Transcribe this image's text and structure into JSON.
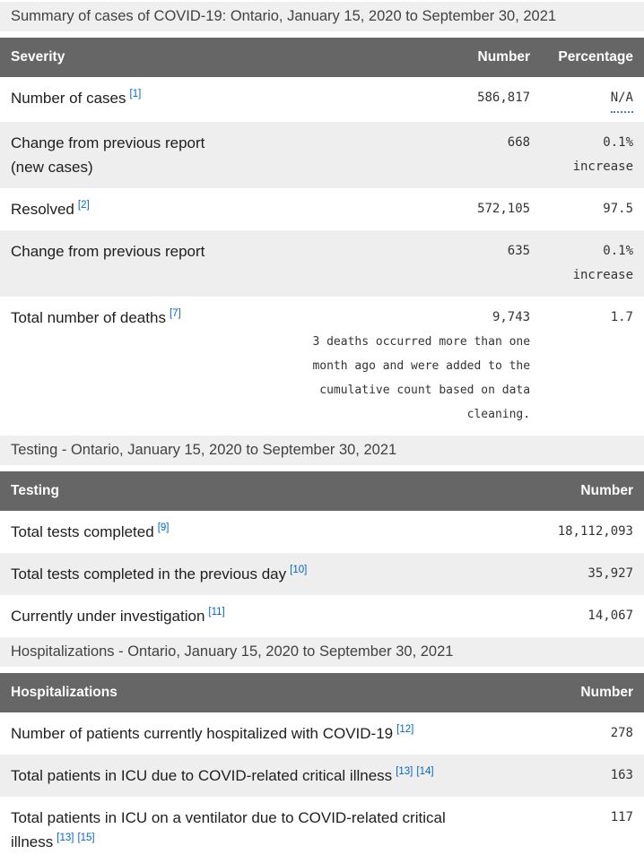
{
  "colors": {
    "table_header_bg": "#666666",
    "caption_bg": "#efefef",
    "stripe_bg": "#eeeeee",
    "footnote_link_blue": "#0066cc",
    "tooltip_dotted_underline": "#5b7e9d",
    "header_text": "#ffffff",
    "body_text": "#202020"
  },
  "summary_table": {
    "caption": "Summary of cases of COVID-19: Ontario, January 15, 2020 to September 30, 2021",
    "columns": [
      "Severity",
      "Number",
      "Percentage"
    ],
    "rows": [
      {
        "label": "Number of cases",
        "footnotes": [
          "[1]"
        ],
        "number": "586,817",
        "percentage": "N/A"
      },
      {
        "label": "Change from previous report",
        "label_line2": "(new cases)",
        "number": "668",
        "percentage": "0.1% increase"
      },
      {
        "label": "Resolved",
        "footnotes": [
          "[2]"
        ],
        "number": "572,105",
        "percentage": "97.5"
      },
      {
        "label": "Change from previous report",
        "number": "635",
        "percentage": "0.1% increase"
      },
      {
        "label": "Total number of deaths",
        "footnotes": [
          "[7]"
        ],
        "number": "9,743",
        "number_note": "3 deaths occurred more than one month ago and were added to the cumulative count based on data cleaning.",
        "percentage": "1.7"
      }
    ]
  },
  "testing_table": {
    "caption": "Testing - Ontario, January 15, 2020 to September 30, 2021",
    "columns": [
      "Testing",
      "Number"
    ],
    "rows": [
      {
        "label": "Total tests completed",
        "footnotes": [
          "[9]"
        ],
        "number": "18,112,093"
      },
      {
        "label": "Total tests completed in the previous day",
        "footnotes": [
          "[10]"
        ],
        "number": "35,927"
      },
      {
        "label": "Currently under investigation",
        "footnotes": [
          "[11]"
        ],
        "number": "14,067"
      }
    ]
  },
  "hospitalizations_table": {
    "caption": "Hospitalizations - Ontario, January 15, 2020 to September 30, 2021",
    "columns": [
      "Hospitalizations",
      "Number"
    ],
    "rows": [
      {
        "label": "Number of patients currently hospitalized with COVID-19",
        "footnotes": [
          "[12]"
        ],
        "number": "278"
      },
      {
        "label": "Total patients in ICU due to COVID-related critical illness",
        "footnotes": [
          "[13]",
          "[14]"
        ],
        "number": "163"
      },
      {
        "label": "Total patients in ICU on a ventilator due to COVID-related critical",
        "label_line2": "illness",
        "line2_footnotes": [
          "[13]",
          "[15]"
        ],
        "number": "117"
      }
    ]
  }
}
